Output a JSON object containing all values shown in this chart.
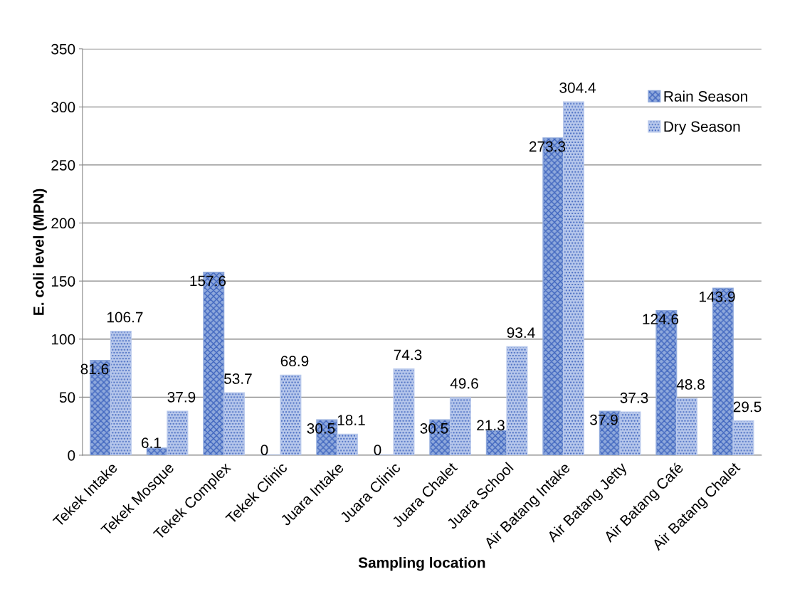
{
  "chart_data": {
    "type": "bar",
    "xlabel": "Sampling location",
    "ylabel": "E. coli level (MPN)",
    "categories": [
      "Tekek Intake",
      "Tekek Mosque",
      "Tekek Complex",
      "Tekek Clinic",
      "Juara Intake",
      "Juara Clinic",
      "Juara Chalet",
      "Juara School",
      "Air Batang Intake",
      "Air Batang Jetty",
      "Air Batang Café",
      "Air Batang Chalet"
    ],
    "series": [
      {
        "name": "Rain Season",
        "color": "#8fa9dc",
        "values": [
          81.6,
          6.1,
          157.6,
          0,
          30.5,
          0,
          30.5,
          21.3,
          273.3,
          37.9,
          124.6,
          143.9
        ]
      },
      {
        "name": "Dry Season",
        "color": "#b9c9ec",
        "values": [
          106.7,
          37.9,
          53.7,
          68.9,
          18.1,
          74.3,
          49.6,
          93.4,
          304.4,
          37.3,
          48.8,
          29.5
        ]
      }
    ],
    "ylim": [
      0,
      350
    ],
    "yticks": [
      0,
      50,
      100,
      150,
      200,
      250,
      300,
      350
    ],
    "grid": "y",
    "legend": "top right",
    "data_labels": true
  }
}
